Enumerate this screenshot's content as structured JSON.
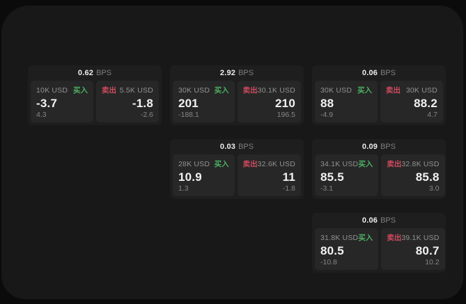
{
  "labels": {
    "bps_unit": "BPS",
    "buy": "买入",
    "sell": "卖出"
  },
  "colors": {
    "buy": "#4caf62",
    "sell": "#cf4a5e",
    "backdrop": "#0b0b0b",
    "panel": "#181818",
    "card": "#1e1e1e",
    "cell": "#272727"
  },
  "cards": [
    {
      "bps": "0.62",
      "buy": {
        "amount": "10K USD",
        "price": "-3.7",
        "sub": "4.3"
      },
      "sell": {
        "amount": "5.5K USD",
        "price": "-1.8",
        "sub": "-2.6"
      }
    },
    {
      "bps": "2.92",
      "buy": {
        "amount": "30K USD",
        "price": "201",
        "sub": "-188.1"
      },
      "sell": {
        "amount": "30.1K USD",
        "price": "210",
        "sub": "196.5"
      }
    },
    {
      "bps": "0.06",
      "buy": {
        "amount": "30K USD",
        "price": "88",
        "sub": "-4.9"
      },
      "sell": {
        "amount": "30K USD",
        "price": "88.2",
        "sub": "4.7"
      }
    },
    {
      "bps": "0.03",
      "buy": {
        "amount": "28K USD",
        "price": "10.9",
        "sub": "1.3"
      },
      "sell": {
        "amount": "32.6K USD",
        "price": "11",
        "sub": "-1.8"
      }
    },
    {
      "bps": "0.09",
      "buy": {
        "amount": "34.1K USD",
        "price": "85.5",
        "sub": "-3.1"
      },
      "sell": {
        "amount": "32.8K USD",
        "price": "85.8",
        "sub": "3.0"
      }
    },
    {
      "bps": "0.06",
      "buy": {
        "amount": "31.8K USD",
        "price": "80.5",
        "sub": "-10.8"
      },
      "sell": {
        "amount": "39.1K USD",
        "price": "80.7",
        "sub": "10.2"
      }
    }
  ]
}
